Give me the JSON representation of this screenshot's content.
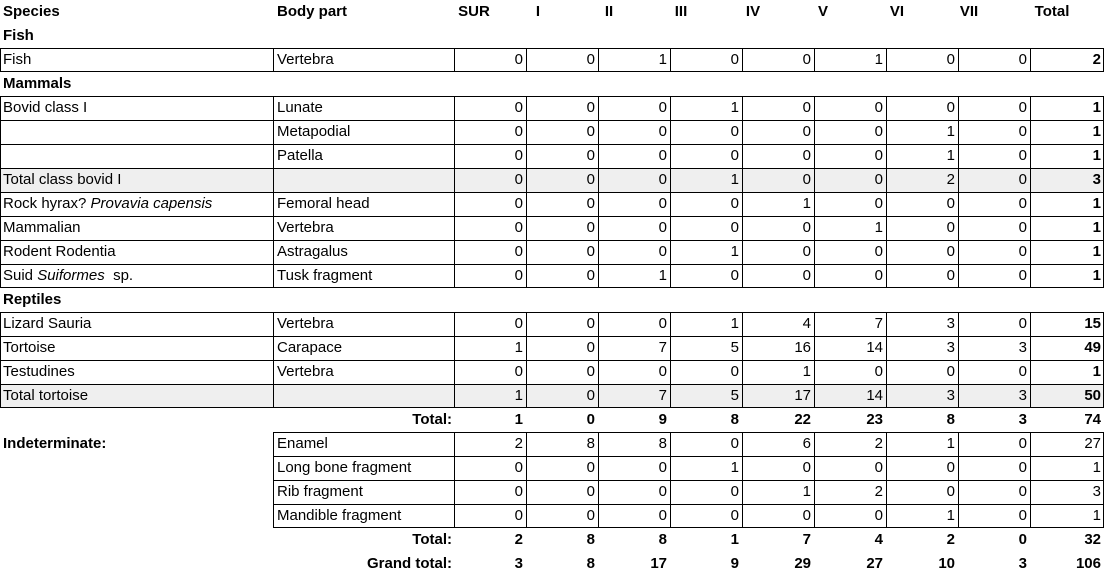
{
  "headers": [
    "Species",
    "Body part",
    "SUR",
    "I",
    "II",
    "III",
    "IV",
    "V",
    "VI",
    "VII",
    "Total"
  ],
  "rows": [
    {
      "type": "section",
      "species": "Fish"
    },
    {
      "type": "data",
      "species": "Fish",
      "body": "Vertebra",
      "values": [
        "0",
        "0",
        "1",
        "0",
        "0",
        "1",
        "0",
        "0"
      ],
      "total": "2"
    },
    {
      "type": "section",
      "species": "Mammals"
    },
    {
      "type": "data",
      "species": "Bovid class I",
      "body": "Lunate",
      "values": [
        "0",
        "0",
        "0",
        "1",
        "0",
        "0",
        "0",
        "0"
      ],
      "total": "1"
    },
    {
      "type": "data",
      "species": "",
      "body": "Metapodial",
      "values": [
        "0",
        "0",
        "0",
        "0",
        "0",
        "0",
        "1",
        "0"
      ],
      "total": "1"
    },
    {
      "type": "data",
      "species": "",
      "body": "Patella",
      "values": [
        "0",
        "0",
        "0",
        "0",
        "0",
        "0",
        "1",
        "0"
      ],
      "total": "1"
    },
    {
      "type": "data",
      "shaded": true,
      "species": "Total class bovid I",
      "body": "",
      "values": [
        "0",
        "0",
        "0",
        "1",
        "0",
        "0",
        "2",
        "0"
      ],
      "total": "3"
    },
    {
      "type": "data",
      "species": "Rock hyrax? ",
      "species_italic": "Provavia capensis",
      "body": "Femoral head",
      "values": [
        "0",
        "0",
        "0",
        "0",
        "1",
        "0",
        "0",
        "0"
      ],
      "total": "1"
    },
    {
      "type": "data",
      "species": "Mammalian",
      "body": "Vertebra",
      "values": [
        "0",
        "0",
        "0",
        "0",
        "0",
        "1",
        "0",
        "0"
      ],
      "total": "1"
    },
    {
      "type": "data",
      "species": "Rodent Rodentia",
      "body": "Astragalus",
      "values": [
        "0",
        "0",
        "0",
        "1",
        "0",
        "0",
        "0",
        "0"
      ],
      "total": "1"
    },
    {
      "type": "data",
      "species": "Suid ",
      "species_italic": "Suiformes",
      "species_after": "  sp.",
      "body": "Tusk fragment",
      "values": [
        "0",
        "0",
        "1",
        "0",
        "0",
        "0",
        "0",
        "0"
      ],
      "total": "1"
    },
    {
      "type": "section",
      "species": "Reptiles"
    },
    {
      "type": "data",
      "species": "Lizard Sauria",
      "body": "Vertebra",
      "values": [
        "0",
        "0",
        "0",
        "1",
        "4",
        "7",
        "3",
        "0"
      ],
      "total": "15"
    },
    {
      "type": "data",
      "species": "Tortoise",
      "body": "Carapace",
      "values": [
        "1",
        "0",
        "7",
        "5",
        "16",
        "14",
        "3",
        "3"
      ],
      "total": "49"
    },
    {
      "type": "data",
      "species": "Testudines",
      "body": "Vertebra",
      "values": [
        "0",
        "0",
        "0",
        "0",
        "1",
        "0",
        "0",
        "0"
      ],
      "total": "1"
    },
    {
      "type": "data",
      "shaded": true,
      "species": "Total tortoise",
      "body": "",
      "values": [
        "1",
        "0",
        "7",
        "5",
        "17",
        "14",
        "3",
        "3"
      ],
      "total": "50"
    },
    {
      "type": "total",
      "label": "Total:",
      "values": [
        "1",
        "0",
        "9",
        "8",
        "22",
        "23",
        "8",
        "3"
      ],
      "total": "74"
    },
    {
      "type": "data",
      "species": "Indeterminate:",
      "species_bold": true,
      "body": "Enamel",
      "values": [
        "2",
        "8",
        "8",
        "0",
        "6",
        "2",
        "1",
        "0"
      ],
      "total": "27",
      "total_normal": true
    },
    {
      "type": "data",
      "species": "",
      "body": "Long bone fragment",
      "values": [
        "0",
        "0",
        "0",
        "1",
        "0",
        "0",
        "0",
        "0"
      ],
      "total": "1",
      "total_normal": true
    },
    {
      "type": "data",
      "species": "",
      "body": "Rib fragment",
      "values": [
        "0",
        "0",
        "0",
        "0",
        "1",
        "2",
        "0",
        "0"
      ],
      "total": "3",
      "total_normal": true
    },
    {
      "type": "data",
      "species": "",
      "body": "Mandible fragment",
      "values": [
        "0",
        "0",
        "0",
        "0",
        "0",
        "0",
        "1",
        "0"
      ],
      "total": "1",
      "total_normal": true
    },
    {
      "type": "total",
      "label": "Total:",
      "values": [
        "2",
        "8",
        "8",
        "1",
        "7",
        "4",
        "2",
        "0"
      ],
      "total": "32"
    },
    {
      "type": "total",
      "label": "Grand total:",
      "values": [
        "3",
        "8",
        "17",
        "9",
        "29",
        "27",
        "10",
        "3"
      ],
      "total": "106"
    }
  ]
}
